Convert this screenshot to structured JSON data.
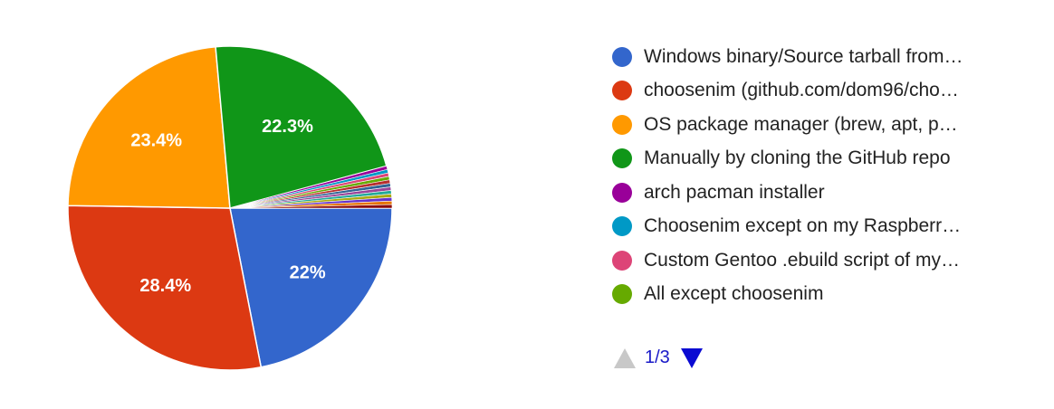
{
  "chart_data": {
    "type": "pie",
    "title": "",
    "slices": [
      {
        "label": "Windows binary/Source tarball from…",
        "value": 22.0,
        "display": "22%",
        "color": "#3366cc"
      },
      {
        "label": "choosenim (github.com/dom96/cho…",
        "value": 28.4,
        "display": "28.4%",
        "color": "#dc3912"
      },
      {
        "label": "OS package manager (brew, apt, p…",
        "value": 23.4,
        "display": "23.4%",
        "color": "#ff9900"
      },
      {
        "label": "Manually by cloning the GitHub repo",
        "value": 22.3,
        "display": "22.3%",
        "color": "#109618"
      },
      {
        "label": "arch pacman installer",
        "value": 0.35,
        "display": "",
        "color": "#990099"
      },
      {
        "label": "Choosenim except on my Raspberr…",
        "value": 0.35,
        "display": "",
        "color": "#0099c6"
      },
      {
        "label": "Custom Gentoo .ebuild script of my…",
        "value": 0.35,
        "display": "",
        "color": "#dd4477"
      },
      {
        "label": "All except choosenim",
        "value": 0.35,
        "display": "",
        "color": "#66aa00"
      },
      {
        "label": "",
        "value": 0.35,
        "display": "",
        "color": "#b82e2e"
      },
      {
        "label": "",
        "value": 0.35,
        "display": "",
        "color": "#316395"
      },
      {
        "label": "",
        "value": 0.35,
        "display": "",
        "color": "#994499"
      },
      {
        "label": "",
        "value": 0.35,
        "display": "",
        "color": "#22aa99"
      },
      {
        "label": "",
        "value": 0.35,
        "display": "",
        "color": "#aaaa11"
      },
      {
        "label": "",
        "value": 0.35,
        "display": "",
        "color": "#6633cc"
      },
      {
        "label": "",
        "value": 0.35,
        "display": "",
        "color": "#e67300"
      },
      {
        "label": "",
        "value": 0.35,
        "display": "",
        "color": "#8b0707"
      }
    ],
    "legend": {
      "placement": "right",
      "visible_entries": [
        "Windows binary/Source tarball from…",
        "choosenim (github.com/dom96/cho…",
        "OS package manager (brew, apt, p…",
        "Manually by cloning the GitHub repo",
        "arch pacman installer",
        "Choosenim except on my Raspberr…",
        "Custom Gentoo .ebuild script of my…",
        "All except choosenim"
      ]
    }
  },
  "legend_colors": [
    "#3366cc",
    "#dc3912",
    "#ff9900",
    "#109618",
    "#990099",
    "#0099c6",
    "#dd4477",
    "#66aa00"
  ],
  "pager": {
    "label": "1/3",
    "prev_icon": "triangle-up-icon",
    "next_icon": "triangle-down-icon"
  }
}
